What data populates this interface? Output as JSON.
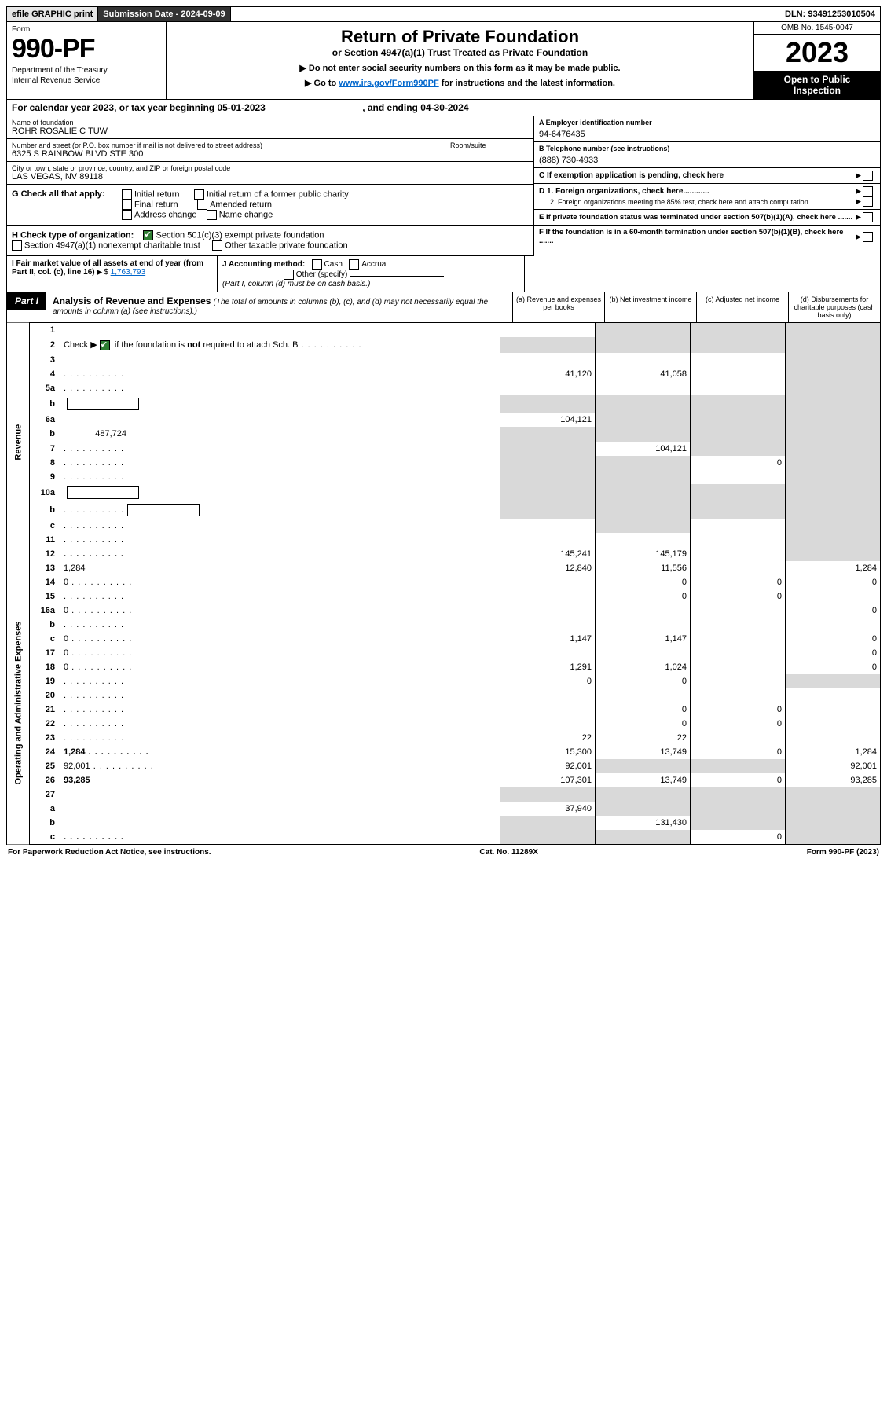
{
  "topbar": {
    "efile": "efile GRAPHIC print",
    "submission_label": "Submission Date - ",
    "submission_date": "2024-09-09",
    "dln_label": "DLN: ",
    "dln": "93491253010504"
  },
  "header": {
    "form_word": "Form",
    "form_number": "990-PF",
    "dept1": "Department of the Treasury",
    "dept2": "Internal Revenue Service",
    "title": "Return of Private Foundation",
    "subtitle": "or Section 4947(a)(1) Trust Treated as Private Foundation",
    "note1": "▶ Do not enter social security numbers on this form as it may be made public.",
    "note2_pre": "▶ Go to ",
    "note2_link": "www.irs.gov/Form990PF",
    "note2_post": " for instructions and the latest information.",
    "omb": "OMB No. 1545-0047",
    "year": "2023",
    "open1": "Open to Public",
    "open2": "Inspection"
  },
  "calyear": {
    "pre": "For calendar year 2023, or tax year beginning ",
    "begin": "05-01-2023",
    "mid": " , and ending ",
    "end": "04-30-2024"
  },
  "entity": {
    "name_lbl": "Name of foundation",
    "name": "ROHR ROSALIE C TUW",
    "addr_lbl": "Number and street (or P.O. box number if mail is not delivered to street address)",
    "addr": "6325 S RAINBOW BLVD STE 300",
    "room_lbl": "Room/suite",
    "city_lbl": "City or town, state or province, country, and ZIP or foreign postal code",
    "city": "LAS VEGAS, NV  89118"
  },
  "right": {
    "a_lbl": "A Employer identification number",
    "a_val": "94-6476435",
    "b_lbl": "B Telephone number (see instructions)",
    "b_val": "(888) 730-4933",
    "c_lbl": "C If exemption application is pending, check here",
    "d1": "D 1. Foreign organizations, check here............",
    "d2": "2. Foreign organizations meeting the 85% test, check here and attach computation ...",
    "e": "E  If private foundation status was terminated under section 507(b)(1)(A), check here .......",
    "f": "F  If the foundation is in a 60-month termination under section 507(b)(1)(B), check here .......",
    "g_lbl": "G Check all that apply:",
    "g_opts": [
      "Initial return",
      "Initial return of a former public charity",
      "Final return",
      "Amended return",
      "Address change",
      "Name change"
    ],
    "h_lbl": "H Check type of organization:",
    "h_1": "Section 501(c)(3) exempt private foundation",
    "h_2": "Section 4947(a)(1) nonexempt charitable trust",
    "h_3": "Other taxable private foundation",
    "i_lbl": "I Fair market value of all assets at end of year (from Part II, col. (c), line 16)",
    "i_val": "1,763,793",
    "j_lbl": "J Accounting method:",
    "j_cash": "Cash",
    "j_accr": "Accrual",
    "j_other": "Other (specify)",
    "j_note": "(Part I, column (d) must be on cash basis.)"
  },
  "part1": {
    "tag": "Part I",
    "title": "Analysis of Revenue and Expenses",
    "title_note": " (The total of amounts in columns (b), (c), and (d) may not necessarily equal the amounts in column (a) (see instructions).)",
    "cols": {
      "a": "(a)  Revenue and expenses per books",
      "b": "(b)  Net investment income",
      "c": "(c)  Adjusted net income",
      "d": "(d)  Disbursements for charitable purposes (cash basis only)"
    }
  },
  "sides": {
    "rev": "Revenue",
    "oae": "Operating and Administrative Expenses"
  },
  "rows": [
    {
      "n": "1",
      "d": "",
      "a": "",
      "b": "",
      "c": "",
      "sa": false,
      "sb": true,
      "sc": true,
      "sd": true
    },
    {
      "n": "2",
      "d": "",
      "dotted": true,
      "a": "",
      "b": "",
      "c": "",
      "sa": true,
      "sb": true,
      "sc": true,
      "sd": true,
      "bold": false,
      "checknote": true
    },
    {
      "n": "3",
      "d": "",
      "a": "",
      "b": "",
      "c": "",
      "sd": true
    },
    {
      "n": "4",
      "d": "",
      "dotted": true,
      "a": "41,120",
      "b": "41,058",
      "c": "",
      "sd": true
    },
    {
      "n": "5a",
      "d": "",
      "dotted": true,
      "a": "",
      "b": "",
      "c": "",
      "sd": true
    },
    {
      "n": "b",
      "d": "",
      "box": true,
      "a": "",
      "b": "",
      "c": "",
      "sa": true,
      "sb": true,
      "sc": true,
      "sd": true
    },
    {
      "n": "6a",
      "d": "",
      "a": "104,121",
      "b": "",
      "c": "",
      "sb": true,
      "sc": true,
      "sd": true
    },
    {
      "n": "b",
      "d": "",
      "uline": "487,724",
      "a": "",
      "b": "",
      "c": "",
      "sa": true,
      "sb": true,
      "sc": true,
      "sd": true
    },
    {
      "n": "7",
      "d": "",
      "dotted": true,
      "a": "",
      "b": "104,121",
      "c": "",
      "sa": true,
      "sc": true,
      "sd": true
    },
    {
      "n": "8",
      "d": "",
      "dotted": true,
      "a": "",
      "b": "",
      "c": "0",
      "sa": true,
      "sb": true,
      "sd": true
    },
    {
      "n": "9",
      "d": "",
      "dotted": true,
      "a": "",
      "b": "",
      "c": "",
      "sa": true,
      "sb": true,
      "sd": true
    },
    {
      "n": "10a",
      "d": "",
      "box": true,
      "a": "",
      "b": "",
      "c": "",
      "sa": true,
      "sb": true,
      "sc": true,
      "sd": true
    },
    {
      "n": "b",
      "d": "",
      "dotted": true,
      "box": true,
      "a": "",
      "b": "",
      "c": "",
      "sa": true,
      "sb": true,
      "sc": true,
      "sd": true
    },
    {
      "n": "c",
      "d": "",
      "dotted": true,
      "a": "",
      "b": "",
      "c": "",
      "sb": true,
      "sd": true
    },
    {
      "n": "11",
      "d": "",
      "dotted": true,
      "a": "",
      "b": "",
      "c": "",
      "sd": true
    },
    {
      "n": "12",
      "d": "",
      "dotted": true,
      "bold": true,
      "a": "145,241",
      "b": "145,179",
      "c": "",
      "sd": true
    },
    {
      "n": "13",
      "d": "1,284",
      "a": "12,840",
      "b": "11,556",
      "c": ""
    },
    {
      "n": "14",
      "d": "0",
      "dotted": true,
      "a": "",
      "b": "0",
      "c": "0"
    },
    {
      "n": "15",
      "d": "",
      "dotted": true,
      "a": "",
      "b": "0",
      "c": "0"
    },
    {
      "n": "16a",
      "d": "0",
      "dotted": true,
      "a": "",
      "b": "",
      "c": ""
    },
    {
      "n": "b",
      "d": "",
      "dotted": true,
      "a": "",
      "b": "",
      "c": ""
    },
    {
      "n": "c",
      "d": "0",
      "dotted": true,
      "a": "1,147",
      "b": "1,147",
      "c": ""
    },
    {
      "n": "17",
      "d": "0",
      "dotted": true,
      "a": "",
      "b": "",
      "c": ""
    },
    {
      "n": "18",
      "d": "0",
      "dotted": true,
      "a": "1,291",
      "b": "1,024",
      "c": ""
    },
    {
      "n": "19",
      "d": "",
      "dotted": true,
      "a": "0",
      "b": "0",
      "c": "",
      "sd": true
    },
    {
      "n": "20",
      "d": "",
      "dotted": true,
      "a": "",
      "b": "",
      "c": ""
    },
    {
      "n": "21",
      "d": "",
      "dotted": true,
      "a": "",
      "b": "0",
      "c": "0"
    },
    {
      "n": "22",
      "d": "",
      "dotted": true,
      "a": "",
      "b": "0",
      "c": "0"
    },
    {
      "n": "23",
      "d": "",
      "dotted": true,
      "a": "22",
      "b": "22",
      "c": ""
    },
    {
      "n": "24",
      "d": "1,284",
      "dotted": true,
      "bold": true,
      "a": "15,300",
      "b": "13,749",
      "c": "0"
    },
    {
      "n": "25",
      "d": "92,001",
      "dotted": true,
      "a": "92,001",
      "b": "",
      "c": "",
      "sb": true,
      "sc": true
    },
    {
      "n": "26",
      "d": "93,285",
      "bold": true,
      "a": "107,301",
      "b": "13,749",
      "c": "0"
    },
    {
      "n": "27",
      "d": "",
      "a": "",
      "b": "",
      "c": "",
      "sa": true,
      "sb": true,
      "sc": true,
      "sd": true
    },
    {
      "n": "a",
      "d": "",
      "bold": true,
      "a": "37,940",
      "b": "",
      "c": "",
      "sb": true,
      "sc": true,
      "sd": true
    },
    {
      "n": "b",
      "d": "",
      "bold": true,
      "a": "",
      "b": "131,430",
      "c": "",
      "sa": true,
      "sc": true,
      "sd": true
    },
    {
      "n": "c",
      "d": "",
      "dotted": true,
      "bold": true,
      "a": "",
      "b": "",
      "c": "0",
      "sa": true,
      "sb": true,
      "sd": true
    }
  ],
  "footer": {
    "left": "For Paperwork Reduction Act Notice, see instructions.",
    "mid": "Cat. No. 11289X",
    "right": "Form 990-PF (2023)"
  }
}
